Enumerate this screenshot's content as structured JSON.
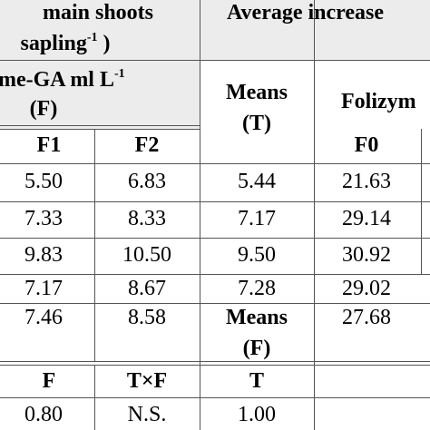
{
  "header": {
    "group_left_line1": "main shoots",
    "group_left_line2": "sapling",
    "group_left_sup": "-1",
    "group_left_tail": " )",
    "group_right": "Average increase",
    "factor_left_line1": "me-GA ml L",
    "factor_left_sup": "-1",
    "factor_left_line2": "(F)",
    "means_t_line1": "Means",
    "means_t_line2": "(T)",
    "factor_right": "Folizym",
    "col_f1": "F1",
    "col_f2": "F2",
    "col_f0": "F0"
  },
  "rows": [
    {
      "f1": "5.50",
      "f2": "6.83",
      "mean": "5.44",
      "f0": "21.63"
    },
    {
      "f1": "7.33",
      "f2": "8.33",
      "mean": "7.17",
      "f0": "29.14"
    },
    {
      "f1": "9.83",
      "f2": "10.50",
      "mean": "9.50",
      "f0": "30.92"
    },
    {
      "f1": "7.17",
      "f2": "8.67",
      "mean": "7.28",
      "f0": "29.02"
    }
  ],
  "means_row": {
    "f1": "7.46",
    "f2": "8.58",
    "label_line1": "Means",
    "label_line2": "(F)",
    "f0": "27.68"
  },
  "lsd": {
    "f_label": "F",
    "txf_label": "T×F",
    "t_label": "T",
    "f_value": "0.80",
    "txf_value": "N.S.",
    "t_value": "1.00"
  }
}
